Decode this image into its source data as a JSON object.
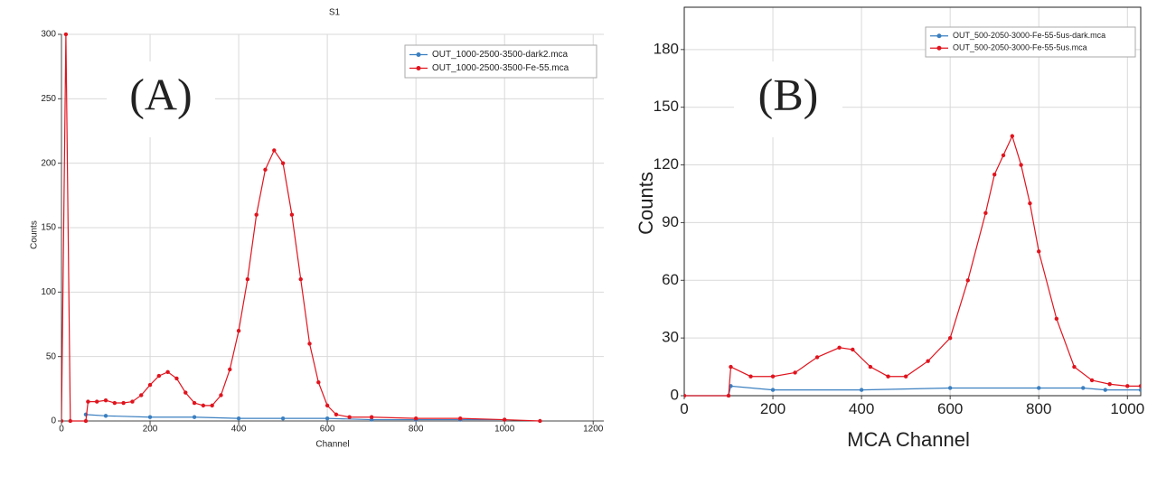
{
  "chart_data": [
    {
      "type": "line",
      "title": "S1",
      "x_label": "Channel",
      "y_label": "Counts",
      "annotation": "(A)",
      "xlim": [
        0,
        1224
      ],
      "ylim": [
        0,
        300
      ],
      "xticks": [
        0,
        200,
        400,
        600,
        800,
        1000,
        1200
      ],
      "yticks": [
        0,
        50,
        100,
        150,
        200,
        250,
        300
      ],
      "grid": true,
      "legend": "upper right",
      "series": [
        {
          "name": "OUT_1000-2500-3500-dark2.mca",
          "color": "#3a7fc0",
          "x": [
            55,
            100,
            200,
            300,
            400,
            500,
            600,
            700,
            800,
            900,
            1000
          ],
          "values": [
            5,
            4,
            3,
            3,
            2,
            2,
            2,
            1,
            1,
            1,
            1
          ]
        },
        {
          "name": "OUT_1000-2500-3500-Fe-55.mca",
          "color": "#e0141e",
          "x": [
            0,
            10,
            20,
            55,
            60,
            80,
            100,
            120,
            140,
            160,
            180,
            200,
            220,
            240,
            260,
            280,
            300,
            320,
            340,
            360,
            380,
            400,
            420,
            440,
            460,
            480,
            500,
            520,
            540,
            560,
            580,
            600,
            620,
            650,
            700,
            800,
            900,
            1000,
            1080
          ],
          "values": [
            0,
            300,
            0,
            0,
            15,
            15,
            16,
            14,
            14,
            15,
            20,
            28,
            35,
            38,
            33,
            22,
            14,
            12,
            12,
            20,
            40,
            70,
            110,
            160,
            195,
            210,
            200,
            160,
            110,
            60,
            30,
            12,
            5,
            3,
            3,
            2,
            2,
            1,
            0
          ]
        }
      ]
    },
    {
      "type": "line",
      "x_label": "MCA Channel",
      "y_label": "Counts",
      "annotation": "(B)",
      "xlim": [
        0,
        1030
      ],
      "ylim": [
        0,
        202
      ],
      "xticks": [
        0,
        200,
        400,
        600,
        800,
        1000
      ],
      "yticks": [
        0,
        30,
        60,
        90,
        120,
        150,
        180
      ],
      "grid": true,
      "legend": "upper right",
      "series": [
        {
          "name": "OUT_500-2050-3000-Fe-55-5us-dark.mca",
          "color": "#3a7fc0",
          "x": [
            0,
            100,
            105,
            200,
            400,
            600,
            800,
            900,
            950,
            1030
          ],
          "values": [
            0,
            0,
            5,
            3,
            3,
            4,
            4,
            4,
            3,
            3
          ]
        },
        {
          "name": "OUT_500-2050-3000-Fe-55-5us.mca",
          "color": "#e0141e",
          "x": [
            0,
            100,
            105,
            150,
            200,
            250,
            300,
            350,
            380,
            420,
            460,
            500,
            550,
            600,
            640,
            680,
            700,
            720,
            740,
            760,
            780,
            800,
            840,
            880,
            920,
            960,
            1000,
            1030
          ],
          "values": [
            0,
            0,
            15,
            10,
            10,
            12,
            20,
            25,
            24,
            15,
            10,
            10,
            18,
            30,
            60,
            95,
            115,
            125,
            135,
            120,
            100,
            75,
            40,
            15,
            8,
            6,
            5,
            5
          ]
        }
      ]
    }
  ]
}
